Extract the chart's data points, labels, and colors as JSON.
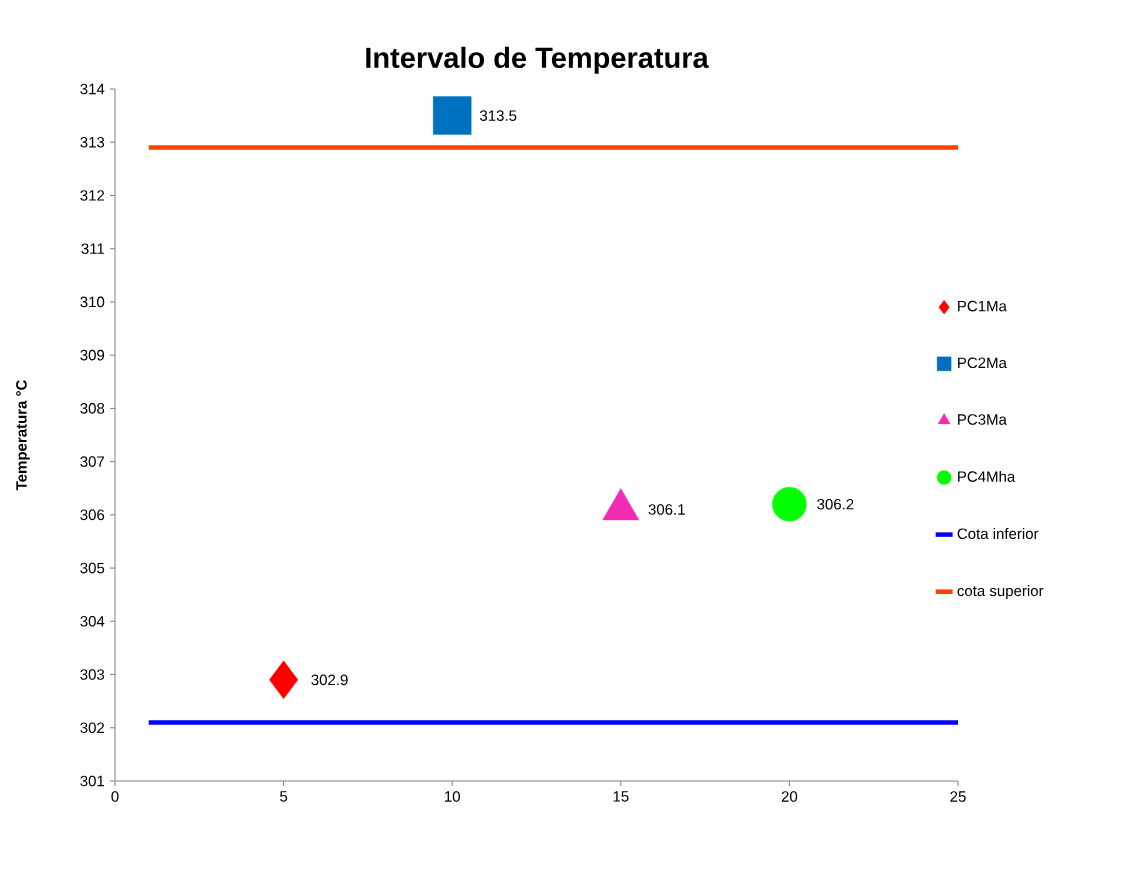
{
  "chart_data": {
    "type": "scatter",
    "title": "Intervalo de Temperatura",
    "ylabel": "Temperatura °C",
    "xlim": [
      0,
      25
    ],
    "ylim": [
      301,
      314
    ],
    "xticks": [
      0,
      5,
      10,
      15,
      20,
      25
    ],
    "yticks": [
      301,
      302,
      303,
      304,
      305,
      306,
      307,
      308,
      309,
      310,
      311,
      312,
      313,
      314
    ],
    "grid": false,
    "legend": "right",
    "series": [
      {
        "name": "PC1Ma",
        "color": "#ff0000",
        "marker": "diamond",
        "x": [
          5
        ],
        "values": [
          302.9
        ],
        "value_labels": [
          "302.9"
        ]
      },
      {
        "name": "PC2Ma",
        "color": "#0070c0",
        "marker": "square",
        "x": [
          10
        ],
        "values": [
          313.5
        ],
        "value_labels": [
          "313.5"
        ]
      },
      {
        "name": "PC3Ma",
        "color": "#f02cb4",
        "marker": "triangle",
        "x": [
          15
        ],
        "values": [
          306.1
        ],
        "value_labels": [
          "306.1"
        ]
      },
      {
        "name": "PC4Mha",
        "color": "#00ff00",
        "marker": "circle",
        "x": [
          20
        ],
        "values": [
          306.2
        ],
        "value_labels": [
          "306.2"
        ]
      },
      {
        "name": "Cota inferior",
        "type": "line",
        "color": "#0000ff",
        "marker": "none",
        "x": [
          1,
          25
        ],
        "values": [
          302.1,
          302.1
        ]
      },
      {
        "name": "cota superior",
        "type": "line",
        "color": "#ff4000",
        "marker": "none",
        "x": [
          1,
          25
        ],
        "values": [
          312.9,
          312.9
        ]
      }
    ]
  }
}
